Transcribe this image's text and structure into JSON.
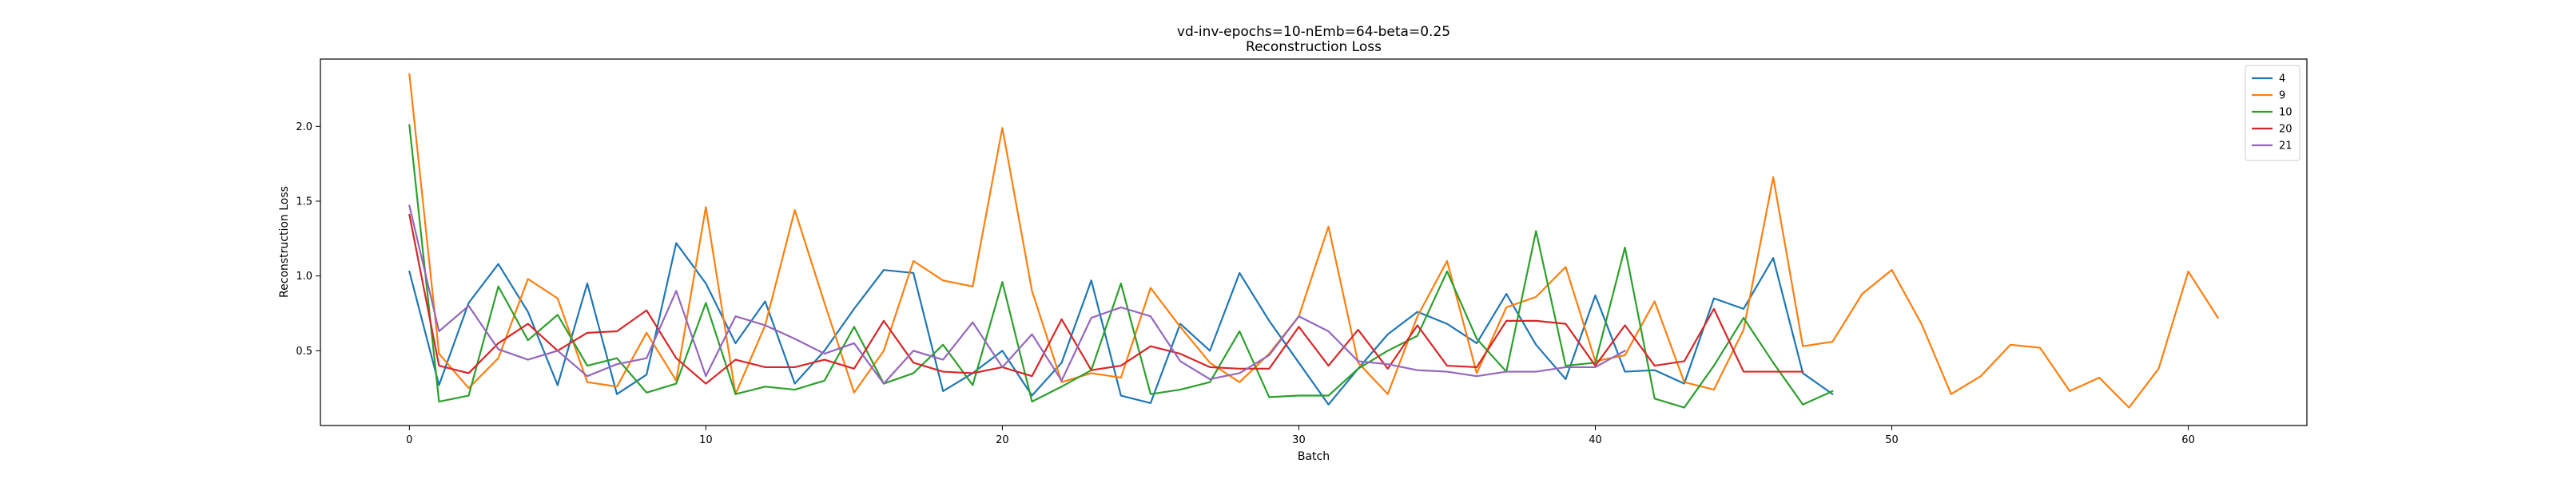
{
  "chart_data": {
    "type": "line",
    "title": "vd-inv-epochs=10-nEmb=64-beta=0.25",
    "subtitle": "Reconstruction Loss",
    "xlabel": "Batch",
    "ylabel": "Reconstruction Loss",
    "xlim": [
      -3,
      64
    ],
    "ylim": [
      0.0,
      2.45
    ],
    "xticks": [
      0,
      10,
      20,
      30,
      40,
      50,
      60
    ],
    "yticks": [
      0.5,
      1.0,
      1.5,
      2.0
    ],
    "yticklabels": [
      "0.5",
      "1.0",
      "1.5",
      "2.0"
    ],
    "grid": false,
    "legend_position": "top-right",
    "series": [
      {
        "name": "4",
        "color": "#1f77b4",
        "values": [
          1.03,
          0.27,
          0.82,
          1.08,
          0.76,
          0.27,
          0.95,
          0.21,
          0.34,
          1.22,
          0.95,
          0.55,
          0.83,
          0.28,
          0.5,
          0.78,
          1.04,
          1.02,
          0.23,
          0.35,
          0.5,
          0.2,
          0.42,
          0.97,
          0.2,
          0.15,
          0.68,
          0.5,
          1.02,
          0.7,
          0.42,
          0.14,
          0.38,
          0.61,
          0.76,
          0.68,
          0.55,
          0.88,
          0.54,
          0.31,
          0.87,
          0.36,
          0.37,
          0.28,
          0.85,
          0.78,
          1.12,
          0.35,
          0.21
        ]
      },
      {
        "name": "9",
        "color": "#ff7f0e",
        "values": [
          2.35,
          0.48,
          0.25,
          0.45,
          0.98,
          0.85,
          0.29,
          0.26,
          0.62,
          0.3,
          1.46,
          0.21,
          0.67,
          1.44,
          0.82,
          0.22,
          0.5,
          1.1,
          0.97,
          0.93,
          1.99,
          0.9,
          0.29,
          0.35,
          0.32,
          0.92,
          0.66,
          0.42,
          0.29,
          0.48,
          0.73,
          1.33,
          0.42,
          0.21,
          0.73,
          1.1,
          0.35,
          0.79,
          0.86,
          1.06,
          0.43,
          0.47,
          0.83,
          0.29,
          0.24,
          0.64,
          1.66,
          0.53,
          0.56,
          0.88,
          1.04,
          0.68,
          0.21,
          0.33,
          0.54,
          0.52,
          0.23,
          0.32,
          0.12,
          0.38,
          1.03,
          0.72
        ]
      },
      {
        "name": "10",
        "color": "#2ca02c",
        "values": [
          2.01,
          0.16,
          0.2,
          0.93,
          0.57,
          0.74,
          0.4,
          0.45,
          0.22,
          0.28,
          0.82,
          0.21,
          0.26,
          0.24,
          0.3,
          0.66,
          0.28,
          0.35,
          0.54,
          0.27,
          0.96,
          0.16,
          0.26,
          0.37,
          0.95,
          0.21,
          0.24,
          0.29,
          0.63,
          0.19,
          0.2,
          0.2,
          0.38,
          0.5,
          0.6,
          1.03,
          0.58,
          0.36,
          1.3,
          0.4,
          0.42,
          1.19,
          0.18,
          0.12,
          0.4,
          0.72,
          0.42,
          0.14,
          0.23
        ]
      },
      {
        "name": "20",
        "color": "#d62728",
        "values": [
          1.41,
          0.4,
          0.35,
          0.55,
          0.68,
          0.5,
          0.62,
          0.63,
          0.77,
          0.45,
          0.28,
          0.44,
          0.39,
          0.39,
          0.44,
          0.38,
          0.7,
          0.42,
          0.36,
          0.35,
          0.39,
          0.33,
          0.71,
          0.37,
          0.4,
          0.53,
          0.48,
          0.39,
          0.38,
          0.38,
          0.66,
          0.4,
          0.64,
          0.38,
          0.67,
          0.4,
          0.39,
          0.7,
          0.7,
          0.68,
          0.4,
          0.67,
          0.4,
          0.43,
          0.78,
          0.36,
          0.36,
          0.36
        ]
      },
      {
        "name": "21",
        "color": "#9467bd",
        "values": [
          1.47,
          0.63,
          0.8,
          0.51,
          0.44,
          0.5,
          0.33,
          0.41,
          0.45,
          0.9,
          0.33,
          0.73,
          0.67,
          0.58,
          0.48,
          0.55,
          0.28,
          0.5,
          0.44,
          0.69,
          0.39,
          0.61,
          0.3,
          0.72,
          0.79,
          0.73,
          0.43,
          0.31,
          0.35,
          0.47,
          0.73,
          0.63,
          0.43,
          0.41,
          0.37,
          0.36,
          0.33,
          0.36,
          0.36,
          0.39,
          0.39,
          0.5
        ]
      }
    ]
  }
}
